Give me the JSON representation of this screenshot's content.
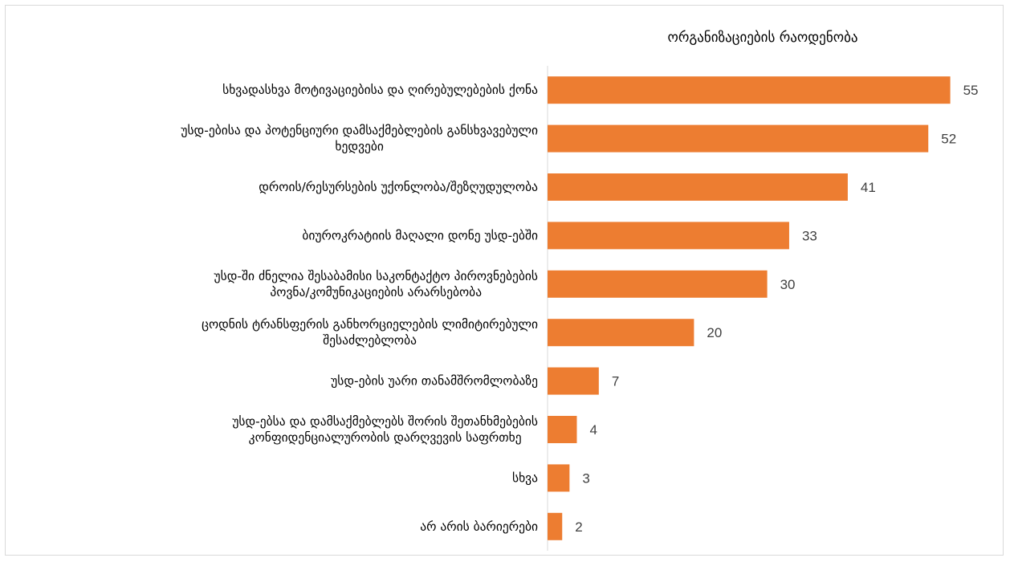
{
  "chart_data": {
    "type": "bar",
    "orientation": "horizontal",
    "series": [
      {
        "name": "ორგანიზაციების რაოდენობა",
        "color": "#ED7D31",
        "values": [
          55,
          52,
          41,
          33,
          30,
          20,
          7,
          4,
          3,
          2
        ]
      }
    ],
    "categories": [
      [
        "სხვადასხვა მოტივაციებისა და ღირებულებების ქონა"
      ],
      [
        "უსდ-ებისა და პოტენციური დამსაქმებლების განსხვავებული",
        "ხედვები"
      ],
      [
        "დროის/რესურსების უქონლობა/შეზღუდულობა"
      ],
      [
        "ბიუროკრატიის მაღალი დონე უსდ-ებში"
      ],
      [
        "უსდ-ში ძნელია შესაბამისი საკონტაქტო პიროვნებების",
        "პოვნა/კომუნიკაციების არარსებობა"
      ],
      [
        "ცოდნის ტრანსფერის განხორციელების ლიმიტირებული",
        "შესაძლებლობა"
      ],
      [
        "უსდ-ების უარი თანამშრომლობაზე"
      ],
      [
        "უსდ-ებსა და დამსაქმებლებს შორის შეთანხმებების",
        "კონფიდენციალურობის დარღვევის საფრთხე"
      ],
      [
        "სხვა"
      ],
      [
        "არ არის ბარიერები"
      ]
    ],
    "xlim": [
      0,
      60
    ],
    "grid": false,
    "legend_position": "top-right",
    "data_labels": true
  }
}
